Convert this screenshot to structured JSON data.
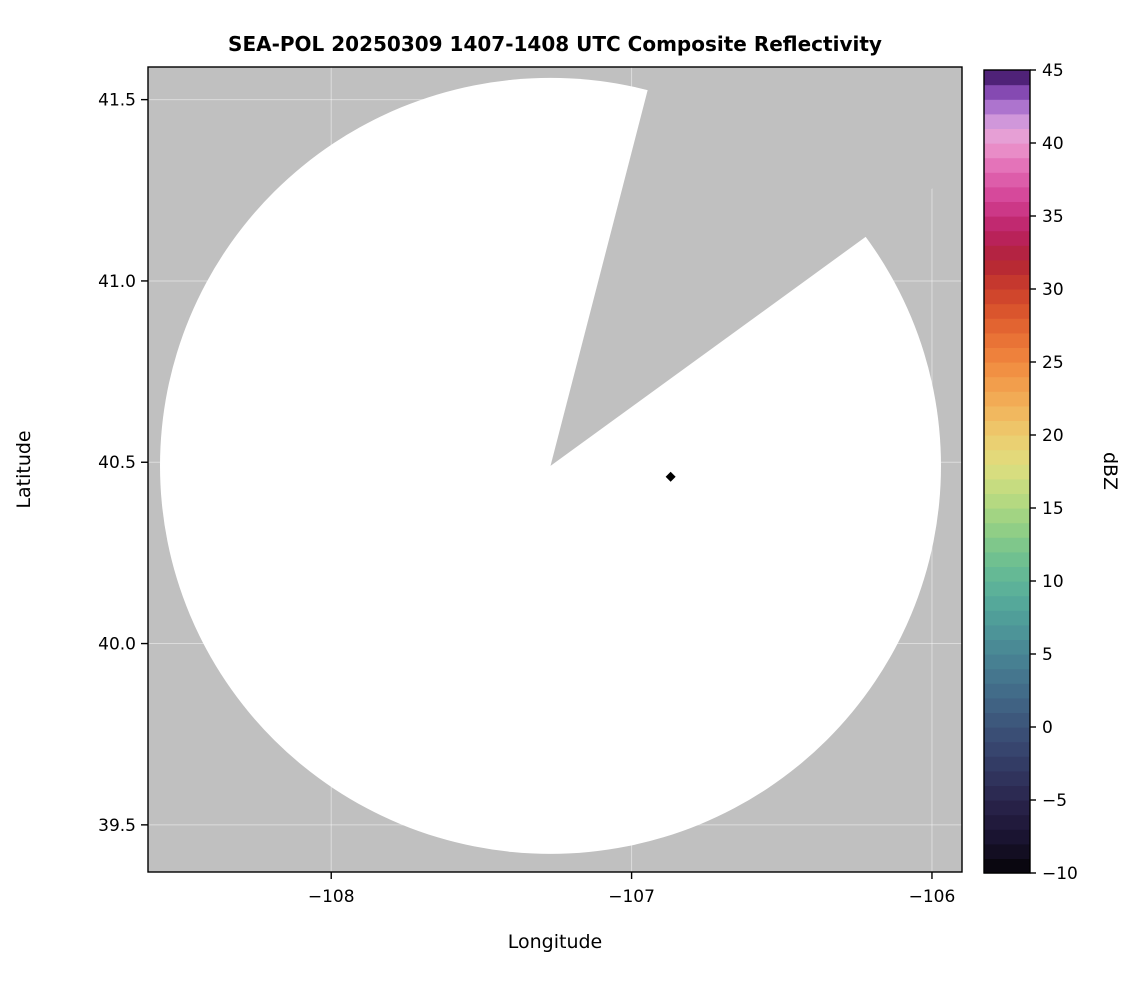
{
  "figure": {
    "background_color": "#ffffff"
  },
  "chart_data": {
    "type": "heatmap",
    "title": "SEA-POL 20250309 1407-1408 UTC Composite Reflectivity",
    "xlabel": "Longitude",
    "ylabel": "Latitude",
    "xlim": [
      -108.61,
      -105.9
    ],
    "ylim": [
      39.37,
      41.59
    ],
    "xticks": [
      -108,
      -107,
      -106
    ],
    "xtick_labels": [
      "−108",
      "−107",
      "−106"
    ],
    "yticks": [
      39.5,
      40.0,
      40.5,
      41.0,
      41.5
    ],
    "ytick_labels": [
      "39.5",
      "40.0",
      "40.5",
      "41.0",
      "41.5"
    ],
    "grid": true,
    "grid_color": "#ffffff",
    "nodata_color": "#c0c0c0",
    "coverage_color": "#ffffff",
    "frame_color": "#000000",
    "echoes_visible": false,
    "radar_coverage": {
      "center_lon": -107.27,
      "center_lat": 40.49,
      "radius_lon_deg": 1.3,
      "radius_lat_deg": 1.07,
      "blocked_sector_azimuth_deg": [
        14.5,
        54.0
      ]
    },
    "site_marker": {
      "lon": -106.87,
      "lat": 40.46,
      "shape": "diamond",
      "color": "#000000"
    },
    "colorbar": {
      "label": "dBZ",
      "min": -10,
      "max": 45,
      "ticks": [
        -10,
        -5,
        0,
        5,
        10,
        15,
        20,
        25,
        30,
        35,
        40,
        45
      ],
      "tick_labels": [
        "−10",
        "−5",
        "0",
        "5",
        "10",
        "15",
        "20",
        "25",
        "30",
        "35",
        "40",
        "45"
      ],
      "colormap_stops": [
        {
          "value": -10,
          "color": "#050307"
        },
        {
          "value": -8,
          "color": "#17112b"
        },
        {
          "value": -6,
          "color": "#241d41"
        },
        {
          "value": -4,
          "color": "#2e2e57"
        },
        {
          "value": -2,
          "color": "#35406a"
        },
        {
          "value": 0,
          "color": "#3b5379"
        },
        {
          "value": 2,
          "color": "#416786"
        },
        {
          "value": 4,
          "color": "#467b90"
        },
        {
          "value": 6,
          "color": "#4b8f97"
        },
        {
          "value": 8,
          "color": "#52a39a"
        },
        {
          "value": 10,
          "color": "#5fb598"
        },
        {
          "value": 12,
          "color": "#76c48d"
        },
        {
          "value": 14,
          "color": "#98d184"
        },
        {
          "value": 16,
          "color": "#bedb80"
        },
        {
          "value": 18,
          "color": "#dfdd7e"
        },
        {
          "value": 20,
          "color": "#edcb6e"
        },
        {
          "value": 22,
          "color": "#f2b25a"
        },
        {
          "value": 24,
          "color": "#f29747"
        },
        {
          "value": 26,
          "color": "#ec7a38"
        },
        {
          "value": 28,
          "color": "#df5c2e"
        },
        {
          "value": 30,
          "color": "#cb3f2b"
        },
        {
          "value": 32,
          "color": "#b22336"
        },
        {
          "value": 34,
          "color": "#bb2164"
        },
        {
          "value": 36,
          "color": "#d23f93"
        },
        {
          "value": 38,
          "color": "#e167b2"
        },
        {
          "value": 40,
          "color": "#eb98ce"
        },
        {
          "value": 41,
          "color": "#e0a5dc"
        },
        {
          "value": 42,
          "color": "#bf88d7"
        },
        {
          "value": 43,
          "color": "#9a5fc4"
        },
        {
          "value": 44,
          "color": "#6f35a0"
        },
        {
          "value": 45,
          "color": "#2e0e4f"
        }
      ]
    }
  }
}
